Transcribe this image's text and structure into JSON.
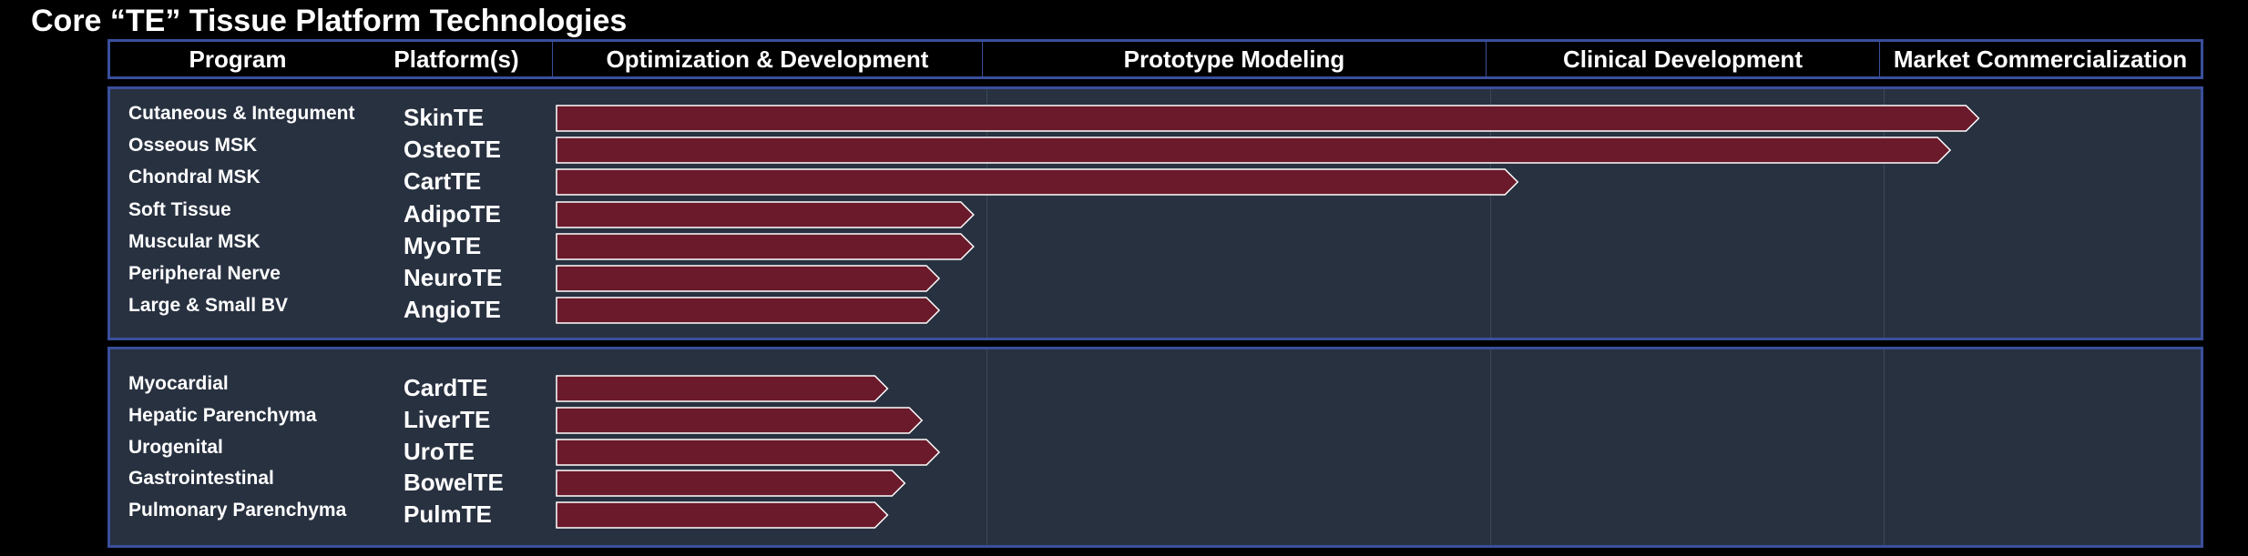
{
  "title": "Core “TE” Tissue Platform Technologies",
  "colors": {
    "bar_fill": "#6b1a2b",
    "panel": "#283140",
    "border": "#3a4f9c"
  },
  "header": {
    "program": "Program",
    "platforms": "Platform(s)",
    "phases": [
      "Optimization & Development",
      "Prototype Modeling",
      "Clinical Development",
      "Market Commercialization"
    ]
  },
  "chart_data": {
    "type": "bar",
    "orientation": "horizontal",
    "value_meaning": "progress across phases (0-4)",
    "phase_labels": [
      "Optimization & Development",
      "Prototype Modeling",
      "Clinical Development",
      "Market Commercialization"
    ],
    "groups": [
      {
        "rows": [
          {
            "program": "Cutaneous & Integument",
            "platform": "SkinTE",
            "progress": 3.3
          },
          {
            "program": "Osseous MSK",
            "platform": "OsteoTE",
            "progress": 3.21
          },
          {
            "program": "Chondral MSK",
            "platform": "CartTE",
            "progress": 2.07
          },
          {
            "program": "Soft Tissue",
            "platform": "AdipoTE",
            "progress": 0.97
          },
          {
            "program": "Muscular MSK",
            "platform": "MyoTE",
            "progress": 0.97
          },
          {
            "program": "Peripheral Nerve",
            "platform": "NeuroTE",
            "progress": 0.89
          },
          {
            "program": "Large & Small BV",
            "platform": "AngioTE",
            "progress": 0.89
          }
        ]
      },
      {
        "rows": [
          {
            "program": "Myocardial",
            "platform": "CardTE",
            "progress": 0.77
          },
          {
            "program": "Hepatic Parenchyma",
            "platform": "LiverTE",
            "progress": 0.85
          },
          {
            "program": "Urogenital",
            "platform": "UroTE",
            "progress": 0.89
          },
          {
            "program": "Gastrointestinal",
            "platform": "BowelTE",
            "progress": 0.81
          },
          {
            "program": "Pulmonary Parenchyma",
            "platform": "PulmTE",
            "progress": 0.77
          }
        ]
      }
    ]
  }
}
